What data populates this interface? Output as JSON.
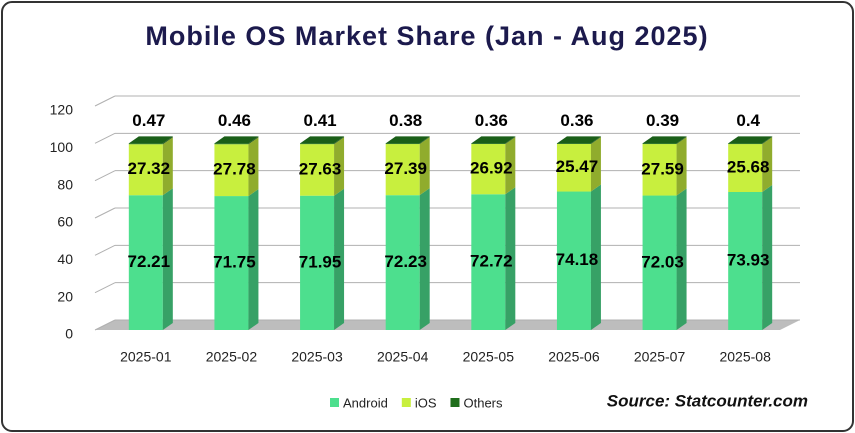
{
  "chart_data": {
    "type": "bar",
    "stacked": true,
    "title": "Mobile OS Market Share (Jan - Aug 2025)",
    "categories": [
      "2025-01",
      "2025-02",
      "2025-03",
      "2025-04",
      "2025-05",
      "2025-06",
      "2025-07",
      "2025-08"
    ],
    "series": [
      {
        "name": "Android",
        "color": "#4ddf8e",
        "values": [
          72.21,
          71.75,
          71.95,
          72.23,
          72.72,
          74.18,
          72.03,
          73.93
        ]
      },
      {
        "name": "iOS",
        "color": "#c8ef3e",
        "values": [
          27.32,
          27.78,
          27.63,
          27.39,
          26.92,
          25.47,
          27.59,
          25.68
        ]
      },
      {
        "name": "Others",
        "color": "#1f6e1c",
        "values": [
          0.47,
          0.46,
          0.41,
          0.38,
          0.36,
          0.36,
          0.39,
          0.4
        ]
      }
    ],
    "ylim": [
      0,
      120
    ],
    "yticks": [
      0,
      20,
      40,
      60,
      80,
      100,
      120
    ],
    "grid": true,
    "legend": "bottom",
    "source": "Source: Statcounter.com"
  }
}
